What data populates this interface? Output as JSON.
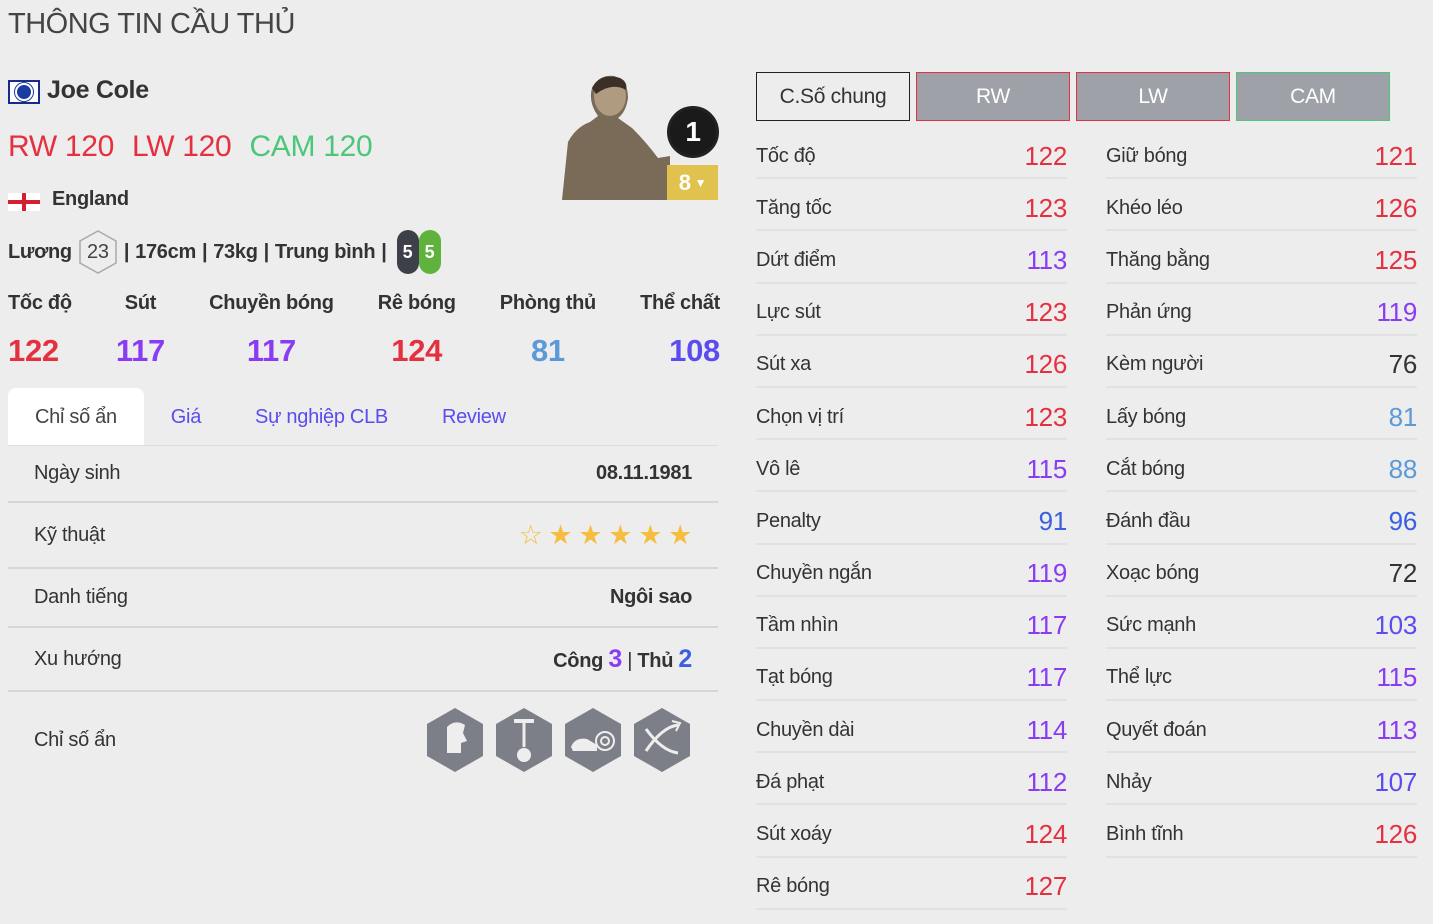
{
  "title": "THÔNG TIN CẦU THỦ",
  "player": {
    "name": "Joe Cole",
    "club_icon": "chelsea-crest-icon",
    "nation": "England",
    "flag_icon": "england-flag-icon",
    "positions": [
      {
        "pos": "RW",
        "ovr": "120",
        "color": "#e5303f"
      },
      {
        "pos": "LW",
        "ovr": "120",
        "color": "#e5303f"
      },
      {
        "pos": "CAM",
        "ovr": "120",
        "color": "#4cc77a"
      }
    ],
    "salary_label": "Lương",
    "salary": "23",
    "height": "176cm",
    "weight": "73kg",
    "body": "Trung bình",
    "left_foot": "5",
    "right_foot": "5",
    "rank": "1",
    "upgrade": "8"
  },
  "main_stats": [
    {
      "label": "Tốc độ",
      "value": 122
    },
    {
      "label": "Sút",
      "value": 117
    },
    {
      "label": "Chuyền bóng",
      "value": 117
    },
    {
      "label": "Rê bóng",
      "value": 124
    },
    {
      "label": "Phòng thủ",
      "value": 81
    },
    {
      "label": "Thể chất",
      "value": 108
    }
  ],
  "tabs": [
    {
      "label": "Chỉ số ẩn",
      "active": true
    },
    {
      "label": "Giá"
    },
    {
      "label": "Sự nghiệp CLB"
    },
    {
      "label": "Review"
    }
  ],
  "info": {
    "birth_label": "Ngày sinh",
    "birth": "08.11.1981",
    "skill_label": "Kỹ thuật",
    "skill_stars": 5,
    "skill_max": 6,
    "fame_label": "Danh tiếng",
    "fame": "Ngôi sao",
    "trend_label": "Xu hướng",
    "attack_label": "Công",
    "attack": "3",
    "defense_label": "Thủ",
    "defense": "2",
    "traits_label": "Chỉ số ẩn",
    "traits": [
      "flair-trait-icon",
      "long-shot-taker-trait-icon",
      "finesse-shot-trait-icon",
      "speed-dribbler-trait-icon"
    ]
  },
  "position_buttons": [
    {
      "label": "C.Số chung",
      "active": true
    },
    {
      "label": "RW",
      "border": "#e5303f"
    },
    {
      "label": "LW",
      "border": "#e5303f"
    },
    {
      "label": "CAM",
      "border": "#4cc77a"
    }
  ],
  "stats_left": [
    [
      "Tốc độ",
      122
    ],
    [
      "Tăng tốc",
      123
    ],
    [
      "Dứt điểm",
      113
    ],
    [
      "Lực sút",
      123
    ],
    [
      "Sút xa",
      126
    ],
    [
      "Chọn vị trí",
      123
    ],
    [
      "Vô lê",
      115
    ],
    [
      "Penalty",
      91
    ],
    [
      "Chuyền ngắn",
      119
    ],
    [
      "Tầm nhìn",
      117
    ],
    [
      "Tạt bóng",
      117
    ],
    [
      "Chuyền dài",
      114
    ],
    [
      "Đá phạt",
      112
    ],
    [
      "Sút xoáy",
      124
    ],
    [
      "Rê bóng",
      127
    ]
  ],
  "stats_right": [
    [
      "Giữ bóng",
      121
    ],
    [
      "Khéo léo",
      126
    ],
    [
      "Thăng bằng",
      125
    ],
    [
      "Phản ứng",
      119
    ],
    [
      "Kèm người",
      76
    ],
    [
      "Lấy bóng",
      81
    ],
    [
      "Cắt bóng",
      88
    ],
    [
      "Đánh đầu",
      96
    ],
    [
      "Xoạc bóng",
      72
    ],
    [
      "Sức mạnh",
      103
    ],
    [
      "Thể lực",
      115
    ],
    [
      "Quyết đoán",
      113
    ],
    [
      "Nhảy",
      107
    ],
    [
      "Bình tĩnh",
      126
    ]
  ],
  "colors": {
    "tier120": "#e5303f",
    "tier110": "#8a3cf5",
    "tier100": "#5b4cf0",
    "tier90": "#3a5fe0",
    "tier80": "#5a9ad8",
    "tier70": "#333333",
    "foot_left": "#3d4048",
    "foot_right": "#5fb33c",
    "attack": "#8a3cf5",
    "defense": "#3a5fe0"
  }
}
